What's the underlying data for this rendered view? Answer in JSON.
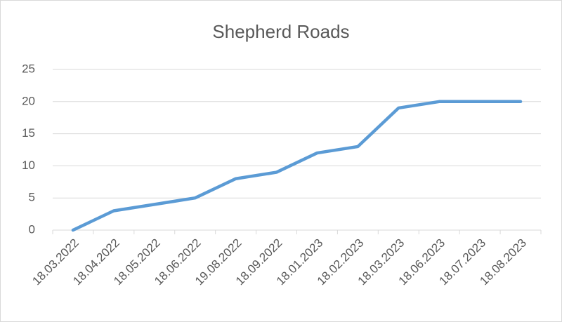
{
  "chart_data": {
    "type": "line",
    "title": "Shepherd Roads",
    "categories": [
      "18.03.2022",
      "18.04.2022",
      "18.05.2022",
      "18.06.2022",
      "19.08.2022",
      "18.09.2022",
      "18.01.2023",
      "18.02.2023",
      "18.03.2023",
      "18.06.2023",
      "18.07.2023",
      "18.08.2023"
    ],
    "values": [
      0,
      3,
      4,
      5,
      8,
      9,
      12,
      13,
      19,
      20,
      20,
      20
    ],
    "color": "#5b9bd5",
    "ylim": [
      0,
      25
    ],
    "yticks": [
      0,
      5,
      10,
      15,
      20,
      25
    ],
    "grid": true
  }
}
